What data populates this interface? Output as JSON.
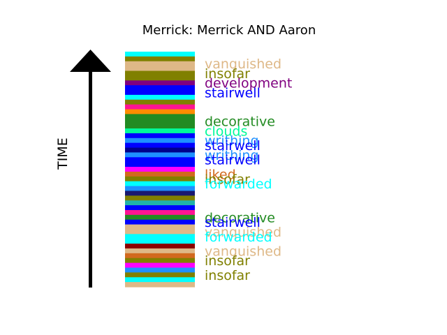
{
  "chart_data": {
    "type": "bar",
    "title": "Merrick: Merrick AND Aaron",
    "ylabel": "TIME",
    "legend": "none",
    "grid": false,
    "segments_top_to_bottom": [
      {
        "color": "#00ffff"
      },
      {
        "color": "#808000"
      },
      {
        "color": "#deb887",
        "label": "vanquished"
      },
      {
        "color": "#deb887"
      },
      {
        "color": "#808000",
        "label": "insofar"
      },
      {
        "color": "#808000"
      },
      {
        "color": "#800080",
        "label": "development"
      },
      {
        "color": "#0000ff"
      },
      {
        "color": "#0000ff",
        "label": "stairwell"
      },
      {
        "color": "#00ffff"
      },
      {
        "color": "#808000"
      },
      {
        "color": "#ff1493"
      },
      {
        "color": "#ff8c00"
      },
      {
        "color": "#228b22"
      },
      {
        "color": "#228b22",
        "label": "decorative"
      },
      {
        "color": "#228b22"
      },
      {
        "color": "#00fa9a",
        "label": "clouds"
      },
      {
        "color": "#0000ff"
      },
      {
        "color": "#1e90ff",
        "label": "writhing"
      },
      {
        "color": "#0000ff",
        "label": "stairwell"
      },
      {
        "color": "#00008b"
      },
      {
        "color": "#1e90ff",
        "label": "writhing"
      },
      {
        "color": "#0000ff",
        "label": "stairwell"
      },
      {
        "color": "#0000ff"
      },
      {
        "color": "#ff00ff"
      },
      {
        "color": "#d2691e",
        "label": "liked"
      },
      {
        "color": "#808000",
        "label": "insofar"
      },
      {
        "color": "#00ffff",
        "label": "forwarded"
      },
      {
        "color": "#1e90ff"
      },
      {
        "color": "#191970"
      },
      {
        "color": "#808000"
      },
      {
        "color": "#20b2aa"
      },
      {
        "color": "#0000ff"
      },
      {
        "color": "#ff1493"
      },
      {
        "color": "#228b22",
        "label": "decorative"
      },
      {
        "color": "#0000ff",
        "label": "stairwell"
      },
      {
        "color": "#deb887"
      },
      {
        "color": "#deb887",
        "label": "vanquished"
      },
      {
        "color": "#00ffff",
        "label": "forwarded"
      },
      {
        "color": "#00ffff"
      },
      {
        "color": "#8b0000"
      },
      {
        "color": "#deb887",
        "label": "vanquished"
      },
      {
        "color": "#d2691e"
      },
      {
        "color": "#808000",
        "label": "insofar"
      },
      {
        "color": "#ff00ff"
      },
      {
        "color": "#1e90ff"
      },
      {
        "color": "#808000",
        "label": "insofar"
      },
      {
        "color": "#00ffff"
      },
      {
        "color": "#deb887"
      }
    ]
  }
}
